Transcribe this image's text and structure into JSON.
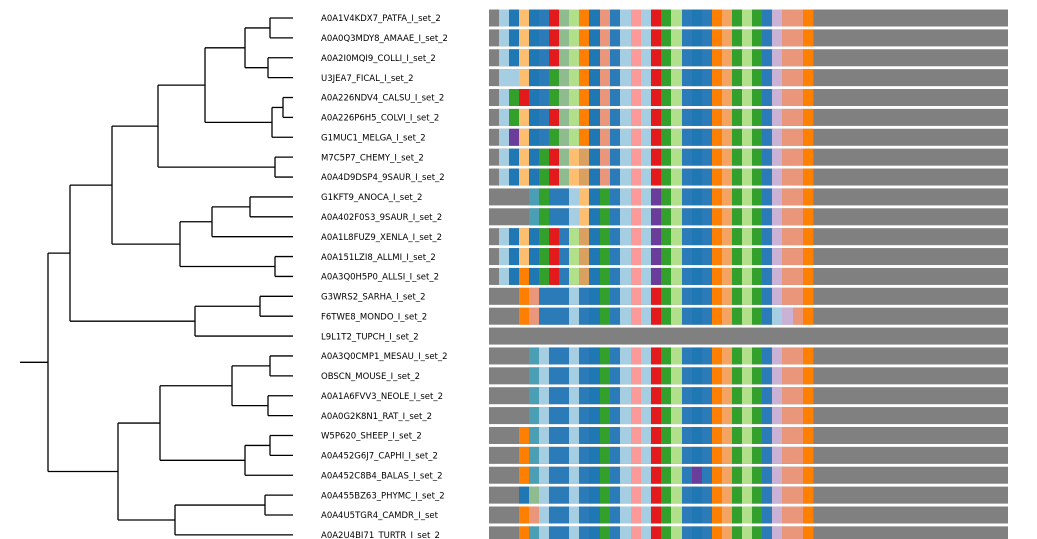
{
  "tree": {
    "leaves": [
      "A0A1V4KDX7_PATFA_I_set_2",
      "A0A0Q3MDY8_AMAAE_I_set_2",
      "A0A2I0MQI9_COLLI_I_set_2",
      "U3JEA7_FICAL_I_set_2",
      "A0A226NDV4_CALSU_I_set_2",
      "A0A226P6H5_COLVI_I_set_2",
      "G1MUC1_MELGA_I_set_2",
      "M7C5P7_CHEMY_I_set_2",
      "A0A4D9DSP4_9SAUR_I_set_2",
      "G1KFT9_ANOCA_I_set_2",
      "A0A402F0S3_9SAUR_I_set_2",
      "A0A1L8FUZ9_XENLA_I_set_2",
      "A0A151LZI8_ALLMI_I_set_2",
      "A0A3Q0H5P0_ALLSI_I_set_2",
      "G3WRS2_SARHA_I_set_2",
      "F6TWE8_MONDO_I_set_2",
      "L9L1T2_TUPCH_I_set_2",
      "A0A3Q0CMP1_MESAU_I_set_2",
      "OBSCN_MOUSE_I_set_2",
      "A0A1A6FVV3_NEOLE_I_set_2",
      "A0A0G2K8N1_RAT_I_set_2",
      "W5P620_SHEEP_I_set_2",
      "A0A452G6J7_CAPHI_I_set_2",
      "A0A452C8B4_BALAS_I_set_2",
      "A0A455BZ63_PHYMC_I_set_2",
      "A0A4U5TGR4_CAMDR_I_set",
      "A0A2U4BI71_TURTR_I_set_2"
    ]
  },
  "msa": {
    "gap_color": "#808080",
    "palette": {
      "g": "#808080",
      "L": "#a6cee3",
      "B": "#1f78b4",
      "Y": "#fdbf6f",
      "O": "#ff7f00",
      "G": "#33a02c",
      "E": "#b2df8a",
      "R": "#e31a1c",
      "S": "#fb9a99",
      "P": "#6a3d9a",
      "V": "#cab2d6",
      "T": "#4a9fb5",
      "D": "#2b7bb9",
      "N": "#e9967a",
      "K": "#d9a060",
      "M": "#8fbc8f",
      "X": "#f4a460"
    },
    "rows": [
      "gLBYBDRMEOBNDLSLRGEDBDOXGEGDVNNOggggggg",
      "gLBYBDRMEOBNDLSLRGEDBDOXGEGDVNNOggggggg",
      "gLBYBDRMEOBNDLSLRGEDBDOXGEGDVNNOggggggg",
      "gLLYBDGMEOBNDLSLRGEDBDOXGEGDVNNOggggggg",
      "gLGRBDGMEOBNDLSLRGEDBDOXGEGDVNNOggggggg",
      "gLGYBDRMEOBNDLSLRGEDBDOXGEGDVNNOggggggg",
      "gLPYBDGMEOBNDLSLRGEDBDOXGEGDVNNOggggggg",
      "gLBYBGRMYKBNDLSLRGEDBDOXGEGDVNNOggggggg",
      "gLBYBGRMYKBNDLSLRGEDBDOXGEGDVNNOggggggg",
      "ggggTGDDLYBGDLSLPGEDBDOXGEGDVNNOggggggg",
      "ggggTGDDLYBGDLSLPGEDBDOXGEGDVNNOggggggg",
      "gLBYBGRDEKBGDLSLPGEDBDOXGEGDVNNOggggggg",
      "gLBYBGRDEKBGDLSLPGEDBDOXGEGDVNNOggggggg",
      "gLBOBGRDEKBGDLSLPGEDBDOXGEGDVNNOggggggg",
      "gggONDDDLDBGDLSLRGEDBDOXGEGDVNNOggggggg",
      "gggONDDDLDBGDLSLRGEDBDOXGEGDLVNOggggggg",
      "ggggggggggggggggggggggggggggggggggggggg",
      "ggggTLDDLDBGDLSLRGEDBDOXGEGDVNNOggggggg",
      "ggggTLDDLDBGDLSLRGEDBDOXGEGDVNNOggggggg",
      "ggggTLDDLDBGDLSLRGEDBDOXGEGDVNNOggggggg",
      "ggggTLDDLDBGDLSLRGEDBDOXGEGDVNNOggggggg",
      "gggOTLDDLDBGDLSLRGEDBDOXGEGDVNNOggggggg",
      "gggOTLDDLDBGDLSLRGEDBDOXGEGDVNNOggggggg",
      "gggOTLDDLDBGDLSLRGEDPDOXGEGDVNNOggggggg",
      "gggBMLDDLDBGDLSLRGEDBDOXGEGDVNNOggggggg",
      "gggONLDDLDBGDLSLRGEDBDOXGEGDVNNOggggggg",
      "gggOTLDDLDBGDLSLRGEDBDOXGEGDVNNOggggggg"
    ]
  }
}
